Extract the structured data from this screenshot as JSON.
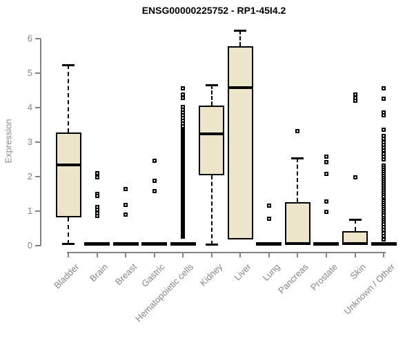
{
  "title": "ENSG00000225752 - RP1-45I4.2",
  "chart_data": {
    "type": "boxplot",
    "title": "ENSG00000225752 - RP1-45I4.2",
    "xlabel": "",
    "ylabel": "Expression",
    "ylim": [
      0,
      6
    ],
    "yticks": [
      0,
      1,
      2,
      3,
      4,
      5,
      6
    ],
    "grid": false,
    "legend": "none",
    "colors": {
      "box_fill": "#ECE5C9",
      "box_border": "#000000",
      "median": "#000000",
      "axis": "#828282",
      "tick_label": "#848484",
      "title": "#000000"
    },
    "categories": [
      "Bladder",
      "Brain",
      "Breast",
      "Gastric",
      "Hematopoietic cells",
      "Kidney",
      "Liver",
      "Lung",
      "Pancreas",
      "Prostate",
      "Skin",
      "Unknown / Other"
    ],
    "series": [
      {
        "category": "Bladder",
        "whisker_low": 0.05,
        "q1": 0.82,
        "median": 2.34,
        "q3": 3.28,
        "whisker_high": 5.25,
        "outliers": []
      },
      {
        "category": "Brain",
        "whisker_low": 0,
        "q1": 0,
        "median": 0.05,
        "q3": 0.1,
        "whisker_high": 0.1,
        "outliers": [
          2.1,
          1.99,
          1.5,
          1.44,
          1.12,
          1.04,
          0.95,
          0.86
        ]
      },
      {
        "category": "Breast",
        "whisker_low": 0,
        "q1": 0,
        "median": 0.05,
        "q3": 0.1,
        "whisker_high": 0.1,
        "outliers": [
          1.64,
          1.18,
          0.91
        ]
      },
      {
        "category": "Gastric",
        "whisker_low": 0,
        "q1": 0,
        "median": 0.05,
        "q3": 0.1,
        "whisker_high": 0.1,
        "outliers": [
          2.46,
          1.88,
          1.58
        ]
      },
      {
        "category": "Hematopoietic cells",
        "whisker_low": 0,
        "q1": 0,
        "median": 0.05,
        "q3": 0.1,
        "whisker_high": 0.1,
        "outliers": [
          0.26,
          0.3,
          0.34,
          0.38,
          0.42,
          0.46,
          0.5,
          0.54,
          0.58,
          0.62,
          0.66,
          0.7,
          0.74,
          0.78,
          0.82,
          0.86,
          0.9,
          0.94,
          0.98,
          1.02,
          1.06,
          1.1,
          1.14,
          1.18,
          1.22,
          1.26,
          1.3,
          1.34,
          1.38,
          1.42,
          1.46,
          1.5,
          1.54,
          1.58,
          1.62,
          1.66,
          1.7,
          1.74,
          1.78,
          1.82,
          1.86,
          1.9,
          1.94,
          1.98,
          2.02,
          2.06,
          2.1,
          2.14,
          2.18,
          2.22,
          2.26,
          2.3,
          2.34,
          2.38,
          2.42,
          2.46,
          2.5,
          2.54,
          2.58,
          2.62,
          2.66,
          2.7,
          2.74,
          2.78,
          2.82,
          2.86,
          2.9,
          2.94,
          2.98,
          3.02,
          3.06,
          3.1,
          3.14,
          3.18,
          3.22,
          3.26,
          3.3,
          3.34,
          3.38,
          3.42,
          3.46,
          3.54,
          3.62,
          3.7,
          3.78,
          3.86,
          3.94,
          4.02,
          4.29,
          4.38,
          4.57
        ]
      },
      {
        "category": "Kidney",
        "whisker_low": 0.02,
        "q1": 2.04,
        "median": 3.24,
        "q3": 4.07,
        "whisker_high": 4.66,
        "outliers": []
      },
      {
        "category": "Liver",
        "whisker_low": 0.18,
        "q1": 0.18,
        "median": 4.58,
        "q3": 5.78,
        "whisker_high": 6.24,
        "outliers": []
      },
      {
        "category": "Lung",
        "whisker_low": 0,
        "q1": 0,
        "median": 0.05,
        "q3": 0.1,
        "whisker_high": 0.1,
        "outliers": [
          1.16,
          0.78
        ]
      },
      {
        "category": "Pancreas",
        "whisker_low": 0.02,
        "q1": 0.02,
        "median": 0.05,
        "q3": 1.26,
        "whisker_high": 2.54,
        "outliers": [
          3.32
        ]
      },
      {
        "category": "Prostate",
        "whisker_low": 0,
        "q1": 0,
        "median": 0.05,
        "q3": 0.1,
        "whisker_high": 0.1,
        "outliers": [
          2.58,
          2.42,
          2.08,
          1.28,
          0.98
        ]
      },
      {
        "category": "Skin",
        "whisker_low": 0.02,
        "q1": 0.02,
        "median": 0.05,
        "q3": 0.42,
        "whisker_high": 0.76,
        "outliers": [
          4.38,
          4.29,
          4.2,
          1.98
        ]
      },
      {
        "category": "Unknown / Other",
        "whisker_low": 0,
        "q1": 0,
        "median": 0.05,
        "q3": 0.1,
        "whisker_high": 0.1,
        "outliers": [
          4.57,
          4.26,
          3.86,
          3.78,
          3.37,
          3.19,
          3.1,
          3.0,
          2.92,
          2.85,
          2.76,
          2.66,
          2.58,
          2.5,
          2.32,
          2.26,
          2.2,
          2.14,
          2.08,
          2.02,
          1.96,
          1.9,
          1.84,
          1.78,
          1.72,
          1.66,
          1.6,
          1.54,
          1.48,
          1.42,
          1.3,
          1.24,
          1.18,
          1.12,
          1.06,
          1.0,
          0.94,
          0.88,
          0.8,
          0.74,
          0.68,
          0.62,
          0.54,
          0.46,
          0.36,
          0.28,
          0.18
        ]
      }
    ]
  }
}
